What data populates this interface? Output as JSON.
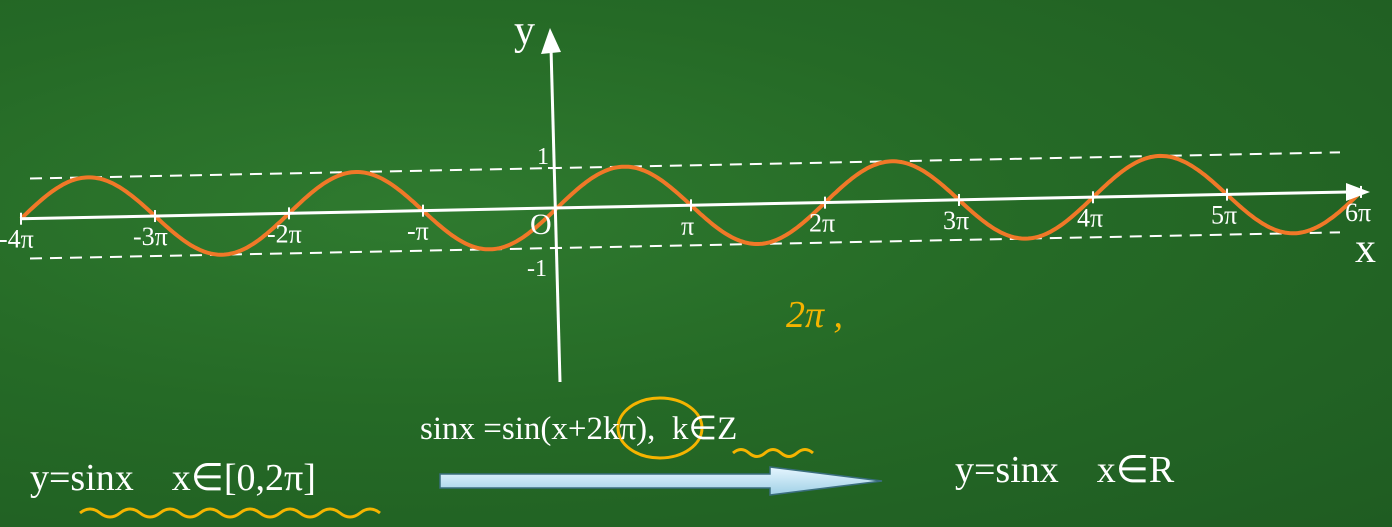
{
  "axes": {
    "y_label": "y",
    "x_label": "x",
    "origin_label": "O",
    "y_tick_labels": [
      "1",
      "-1"
    ],
    "x_tick_labels": [
      "-4π",
      "-3π",
      "-2π",
      "-π",
      "π",
      "2π",
      "3π",
      "4π",
      "5π",
      "6π"
    ]
  },
  "curve": {
    "function": "sin",
    "x_range_in_pi": [
      -4,
      6
    ],
    "amplitude": 1,
    "color": "#f07828"
  },
  "guides": {
    "dashed_levels": [
      1,
      -1
    ],
    "color": "#ffffff"
  },
  "annotation_handwritten": "2π ,",
  "annotation_color": "#f5b400",
  "formulas": {
    "left_func": "y=sinx",
    "left_domain": "x∈[0,2π]",
    "middle_identity": "sinx =sin(x+2kπ),",
    "middle_condition": "k∈Z",
    "right_func": "y=sinx",
    "right_domain": "x∈R"
  },
  "arrow_color": "#bfe3f2"
}
